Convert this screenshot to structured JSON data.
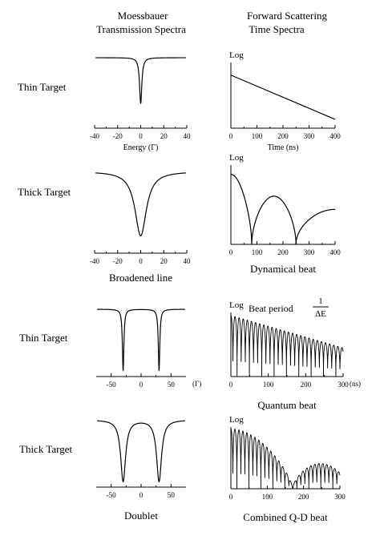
{
  "headers": {
    "left": [
      "Moessbauer",
      "Transmission Spectra"
    ],
    "right": [
      "Forward Scattering",
      "Time Spectra"
    ]
  },
  "row_labels": [
    "Thin Target",
    "Thick Target",
    "Thin Target",
    "Thick Target"
  ],
  "chart_data": [
    {
      "id": "energy-thin-single",
      "type": "line",
      "xlabel": "Energy (Γ)",
      "xlim": [
        -40,
        40
      ],
      "xticks": [
        -40,
        -20,
        0,
        20,
        40
      ],
      "lines": 1,
      "line_positions": [
        0
      ],
      "width": 1.2,
      "depth": 0.95
    },
    {
      "id": "time-thin-single",
      "type": "line",
      "ylabel": "Log",
      "xlabel": "Time (ns)",
      "xlim": [
        0,
        400
      ],
      "xticks": [
        0,
        100,
        200,
        300,
        400
      ],
      "y_start": 0.72,
      "y_end": 0.12
    },
    {
      "id": "energy-thick-single",
      "type": "line",
      "xlim": [
        -40,
        40
      ],
      "xticks": [
        -40,
        -20,
        0,
        20,
        40
      ],
      "caption": "Broadened line",
      "lines": 1,
      "line_positions": [
        0
      ],
      "width": 6,
      "depth": 0.98
    },
    {
      "id": "time-thick-single",
      "type": "line",
      "ylabel": "Log",
      "xlim": [
        0,
        400
      ],
      "xticks": [
        0,
        100,
        200,
        300,
        400
      ],
      "caption": "Dynamical beat",
      "minima": [
        80,
        250
      ]
    },
    {
      "id": "energy-thin-doublet",
      "type": "line",
      "xlim": [
        -75,
        75
      ],
      "xticks": [
        -50,
        0,
        50
      ],
      "unit_label": "(Γ)",
      "lines": 2,
      "line_positions": [
        -30,
        30
      ],
      "width": 1.5,
      "depth": 0.95
    },
    {
      "id": "time-thin-doublet",
      "type": "line",
      "ylabel": "Log",
      "annotation": "Beat period",
      "annotation_fraction": [
        "1",
        "ΔE"
      ],
      "xlim": [
        0,
        300
      ],
      "xticks": [
        0,
        100,
        200,
        300
      ],
      "unit_label": "(ns)",
      "caption": "Quantum beat",
      "beat_period": 11
    },
    {
      "id": "energy-thick-doublet",
      "type": "line",
      "xlim": [
        -75,
        75
      ],
      "xticks": [
        -50,
        0,
        50
      ],
      "caption": "Doublet",
      "lines": 2,
      "line_positions": [
        -30,
        30
      ],
      "width": 5,
      "depth": 0.98
    },
    {
      "id": "time-thick-doublet",
      "type": "line",
      "ylabel": "Log",
      "xlim": [
        0,
        300
      ],
      "xticks": [
        0,
        100,
        200,
        300
      ],
      "caption": "Combined Q-D beat",
      "beat_period": 11,
      "dynamical_minimum": 170
    }
  ]
}
